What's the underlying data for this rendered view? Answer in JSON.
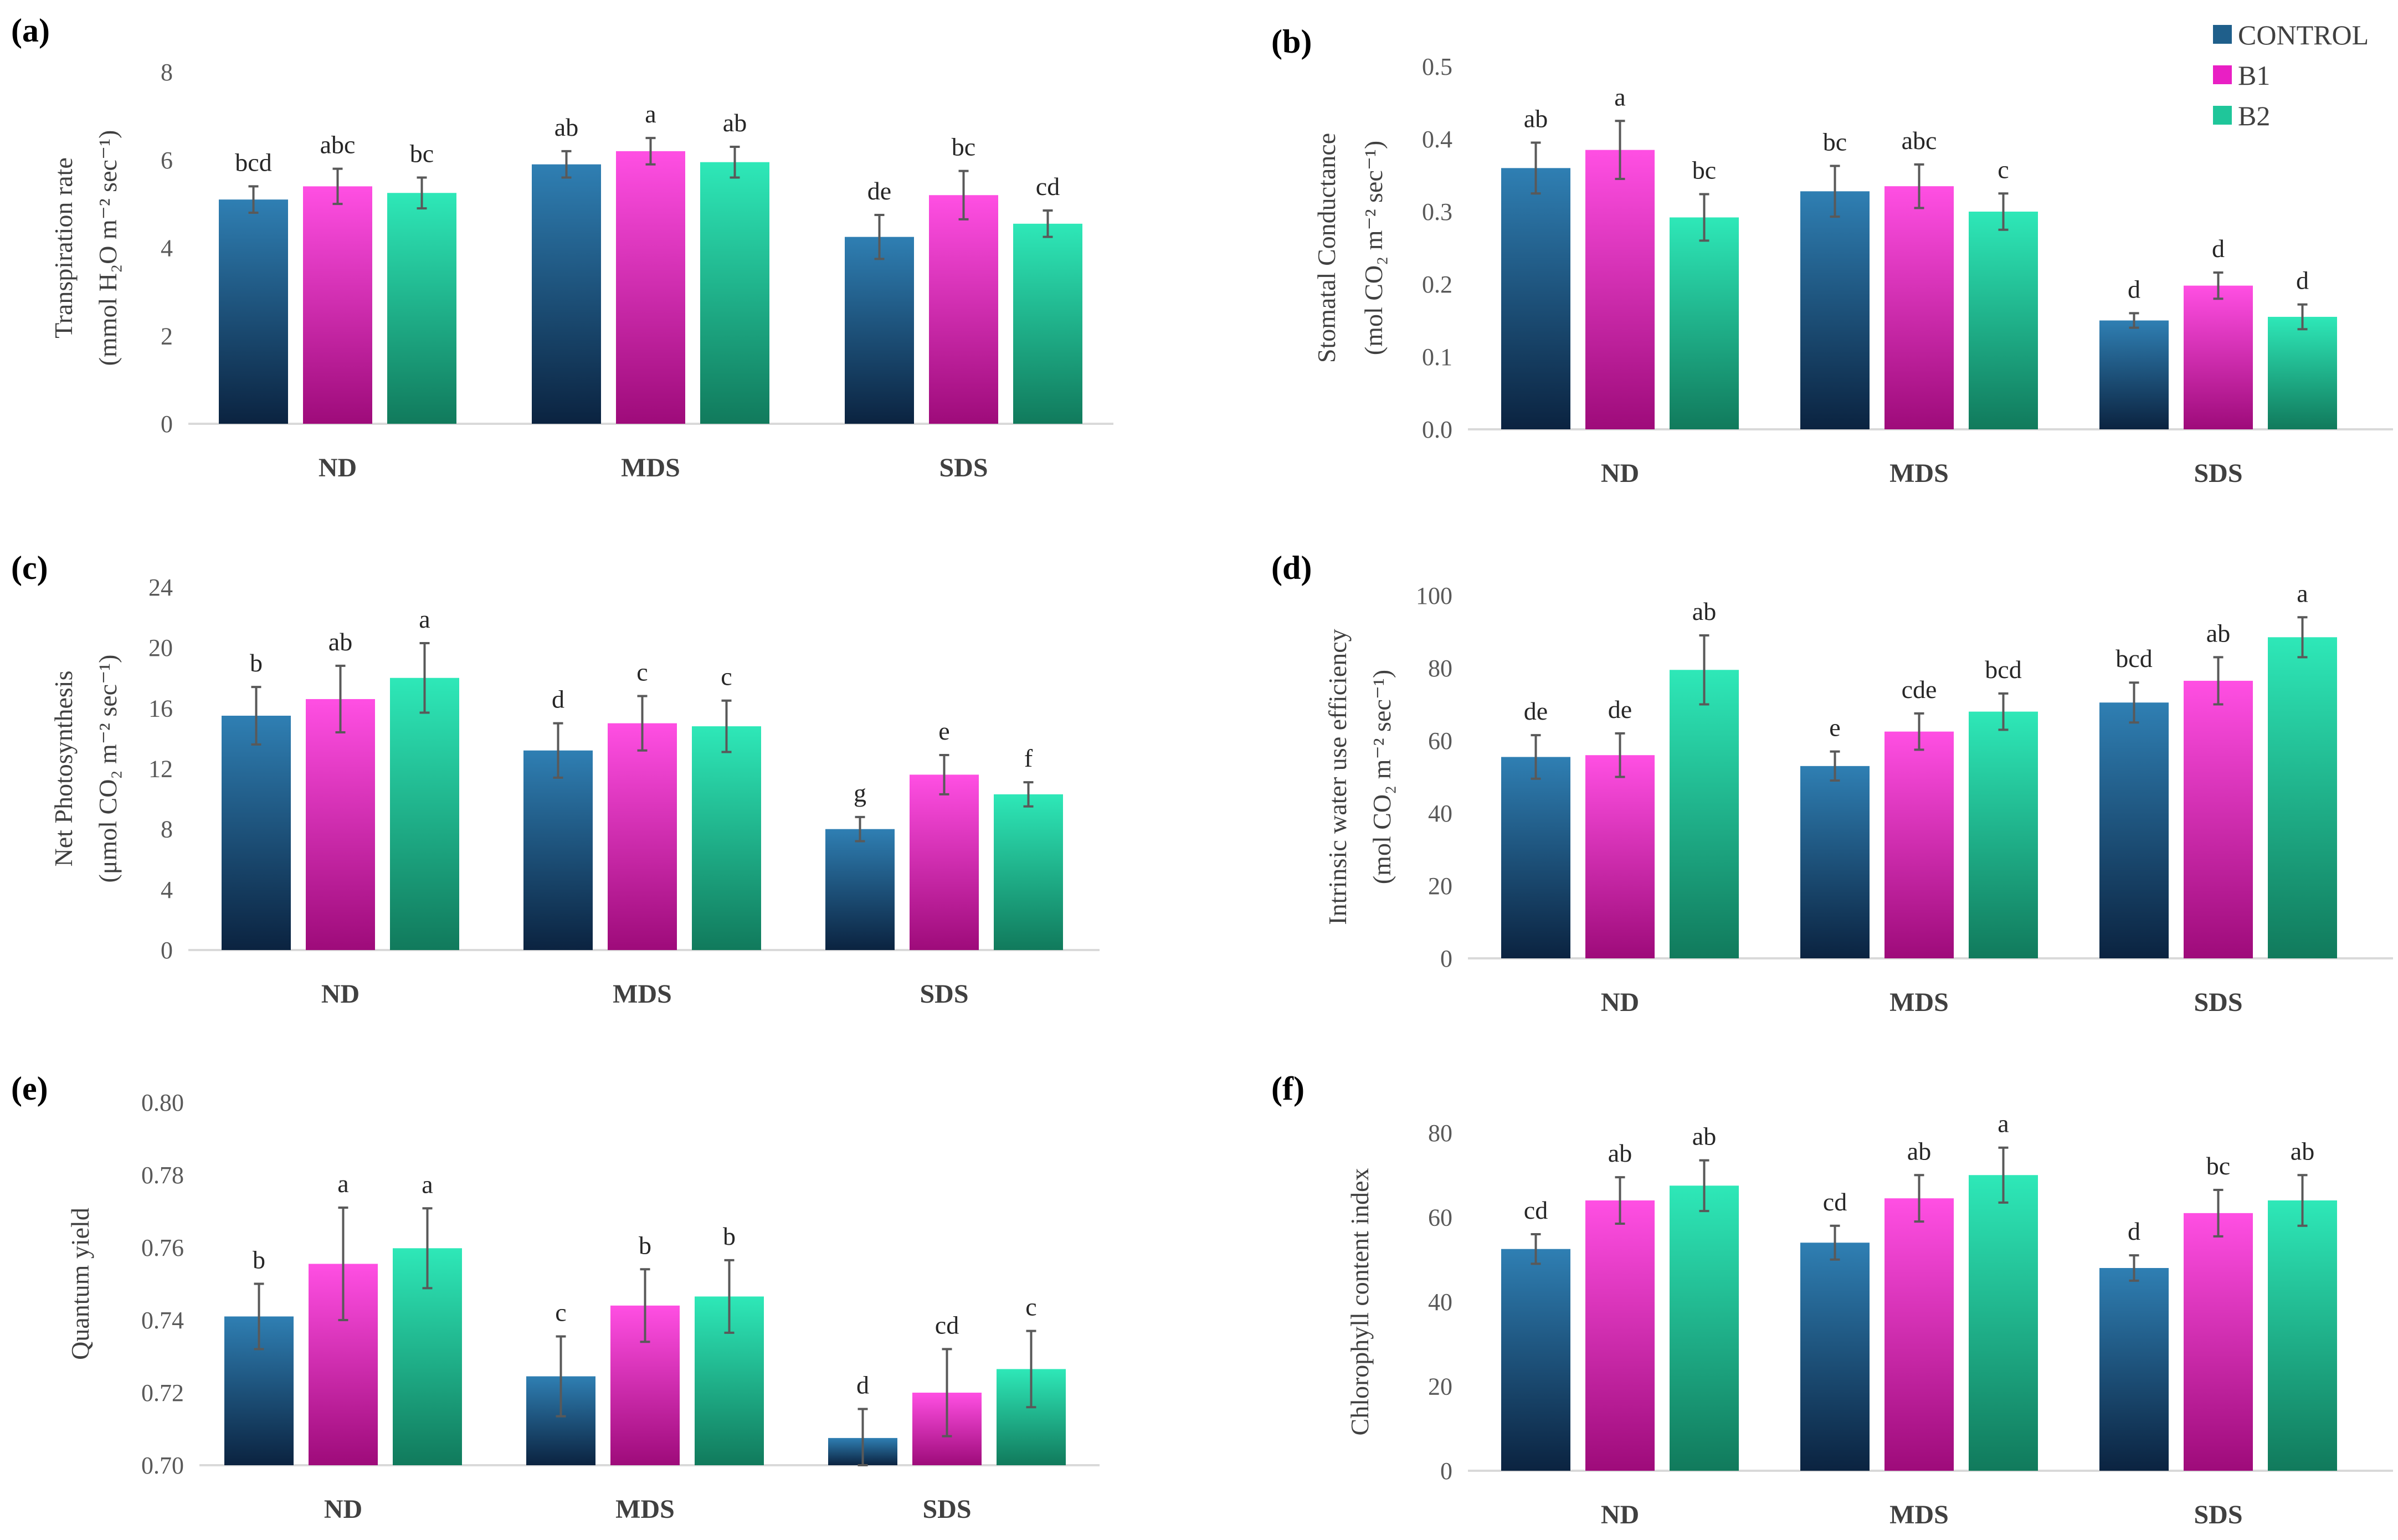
{
  "legend": [
    {
      "name": "CONTROL",
      "color": "#1f5f8b"
    },
    {
      "name": "B1",
      "color": "#e91fc4"
    },
    {
      "name": "B2",
      "color": "#1fc69a"
    }
  ],
  "chart_data": [
    {
      "type": "bar",
      "panel_label": "(a)",
      "ylabel_line1": "Transpiration rate",
      "ylabel_line2": "(mmol H₂O m⁻² sec⁻¹)",
      "categories": [
        "ND",
        "MDS",
        "SDS"
      ],
      "ylim": [
        0,
        8
      ],
      "yticks": [
        "0",
        "2",
        "4",
        "6",
        "8"
      ],
      "series": [
        {
          "name": "CONTROL",
          "values": [
            5.1,
            5.9,
            4.25
          ],
          "errors": [
            0.3,
            0.3,
            0.5
          ],
          "letters": [
            "bcd",
            "ab",
            "de"
          ]
        },
        {
          "name": "B1",
          "values": [
            5.4,
            6.2,
            5.2
          ],
          "errors": [
            0.4,
            0.3,
            0.55
          ],
          "letters": [
            "abc",
            "a",
            "bc"
          ]
        },
        {
          "name": "B2",
          "values": [
            5.25,
            5.95,
            4.55
          ],
          "errors": [
            0.35,
            0.35,
            0.3
          ],
          "letters": [
            "bc",
            "ab",
            "cd"
          ]
        }
      ]
    },
    {
      "type": "bar",
      "panel_label": "(b)",
      "ylabel_line1": "Stomatal Conductance",
      "ylabel_line2": "(mol CO₂ m⁻² sec⁻¹)",
      "categories": [
        "ND",
        "MDS",
        "SDS"
      ],
      "ylim": [
        0,
        0.5
      ],
      "yticks": [
        "0.0",
        "0.1",
        "0.2",
        "0.3",
        "0.4",
        "0.5"
      ],
      "series": [
        {
          "name": "CONTROL",
          "values": [
            0.36,
            0.328,
            0.15
          ],
          "errors": [
            0.035,
            0.035,
            0.01
          ],
          "letters": [
            "ab",
            "bc",
            "d"
          ]
        },
        {
          "name": "B1",
          "values": [
            0.385,
            0.335,
            0.198
          ],
          "errors": [
            0.04,
            0.03,
            0.018
          ],
          "letters": [
            "a",
            "abc",
            "d"
          ]
        },
        {
          "name": "B2",
          "values": [
            0.292,
            0.3,
            0.155
          ],
          "errors": [
            0.032,
            0.025,
            0.017
          ],
          "letters": [
            "bc",
            "c",
            "d"
          ]
        }
      ]
    },
    {
      "type": "bar",
      "panel_label": "(c)",
      "ylabel_line1": "Net Photosynthesis",
      "ylabel_line2": "(μmol CO₂ m⁻² sec⁻¹)",
      "categories": [
        "ND",
        "MDS",
        "SDS"
      ],
      "ylim": [
        0,
        24
      ],
      "yticks": [
        "0",
        "4",
        "8",
        "12",
        "16",
        "20",
        "24"
      ],
      "series": [
        {
          "name": "CONTROL",
          "values": [
            15.5,
            13.2,
            8.0
          ],
          "errors": [
            1.9,
            1.8,
            0.8
          ],
          "letters": [
            "b",
            "d",
            "g"
          ]
        },
        {
          "name": "B1",
          "values": [
            16.6,
            15.0,
            11.6
          ],
          "errors": [
            2.2,
            1.8,
            1.3
          ],
          "letters": [
            "ab",
            "c",
            "e"
          ]
        },
        {
          "name": "B2",
          "values": [
            18.0,
            14.8,
            10.3
          ],
          "errors": [
            2.3,
            1.7,
            0.8
          ],
          "letters": [
            "a",
            "c",
            "f"
          ]
        }
      ]
    },
    {
      "type": "bar",
      "panel_label": "(d)",
      "ylabel_line1": "Intrinsic water use efficiency",
      "ylabel_line2": "(mol CO₂ m⁻² sec⁻¹)",
      "categories": [
        "ND",
        "MDS",
        "SDS"
      ],
      "ylim": [
        0,
        100
      ],
      "yticks": [
        "0",
        "20",
        "40",
        "60",
        "80",
        "100"
      ],
      "series": [
        {
          "name": "CONTROL",
          "values": [
            55.5,
            53.0,
            70.5
          ],
          "errors": [
            6.0,
            4.0,
            5.5
          ],
          "letters": [
            "de",
            "e",
            "bcd"
          ]
        },
        {
          "name": "B1",
          "values": [
            56.0,
            62.5,
            76.5
          ],
          "errors": [
            6.0,
            5.0,
            6.5
          ],
          "letters": [
            "de",
            "cde",
            "ab"
          ]
        },
        {
          "name": "B2",
          "values": [
            79.5,
            68.0,
            88.5
          ],
          "errors": [
            9.5,
            5.0,
            5.5
          ],
          "letters": [
            "ab",
            "bcd",
            "a"
          ]
        }
      ]
    },
    {
      "type": "bar",
      "panel_label": "(e)",
      "ylabel_line1": "Quantum yield",
      "ylabel_line2": "",
      "categories": [
        "ND",
        "MDS",
        "SDS"
      ],
      "ylim": [
        0.7,
        0.8
      ],
      "yticks": [
        "0.70",
        "0.72",
        "0.74",
        "0.76",
        "0.78",
        "0.80"
      ],
      "series": [
        {
          "name": "CONTROL",
          "values": [
            0.741,
            0.7245,
            0.7075
          ],
          "errors": [
            0.009,
            0.011,
            0.008
          ],
          "letters": [
            "b",
            "c",
            "d"
          ]
        },
        {
          "name": "B1",
          "values": [
            0.7555,
            0.744,
            0.72
          ],
          "errors": [
            0.0155,
            0.01,
            0.012
          ],
          "letters": [
            "a",
            "b",
            "cd"
          ]
        },
        {
          "name": "B2",
          "values": [
            0.7598,
            0.7465,
            0.7265
          ],
          "errors": [
            0.011,
            0.01,
            0.0105
          ],
          "letters": [
            "a",
            "b",
            "c"
          ]
        }
      ]
    },
    {
      "type": "bar",
      "panel_label": "(f)",
      "ylabel_line1": "Chlorophyll content index",
      "ylabel_line2": "",
      "categories": [
        "ND",
        "MDS",
        "SDS"
      ],
      "ylim": [
        0,
        80
      ],
      "yticks": [
        "0",
        "20",
        "40",
        "60",
        "80"
      ],
      "series": [
        {
          "name": "CONTROL",
          "values": [
            52.5,
            54.0,
            48.0
          ],
          "errors": [
            3.5,
            4.0,
            3.0
          ],
          "letters": [
            "cd",
            "cd",
            "d"
          ]
        },
        {
          "name": "B1",
          "values": [
            64.0,
            64.5,
            61.0
          ],
          "errors": [
            5.5,
            5.5,
            5.5
          ],
          "letters": [
            "ab",
            "ab",
            "bc"
          ]
        },
        {
          "name": "B2",
          "values": [
            67.5,
            70.0,
            64.0
          ],
          "errors": [
            6.0,
            6.5,
            6.0
          ],
          "letters": [
            "ab",
            "a",
            "ab"
          ]
        }
      ]
    }
  ]
}
